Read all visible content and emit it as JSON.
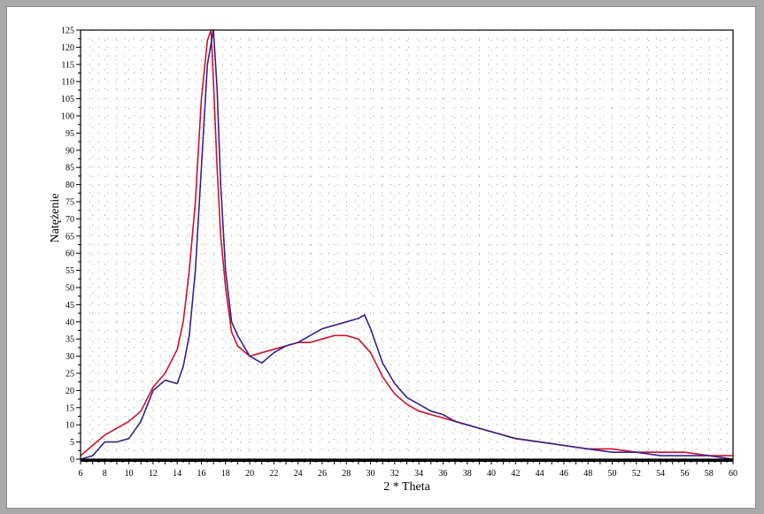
{
  "chart_data": {
    "type": "line",
    "xlabel": "2 * Theta",
    "ylabel": "Natężenie",
    "xlim": [
      6,
      60
    ],
    "ylim": [
      0,
      125
    ],
    "x_ticks": [
      6,
      8,
      10,
      12,
      14,
      16,
      18,
      20,
      22,
      24,
      26,
      28,
      30,
      32,
      34,
      36,
      38,
      40,
      42,
      44,
      46,
      48,
      50,
      52,
      54,
      56,
      58,
      60
    ],
    "y_ticks": [
      0,
      5,
      10,
      15,
      20,
      25,
      30,
      35,
      40,
      45,
      50,
      55,
      60,
      65,
      70,
      75,
      80,
      85,
      90,
      95,
      100,
      105,
      110,
      115,
      120,
      125
    ],
    "grid": "dotted",
    "series": [
      {
        "color": "#d0102c",
        "x": [
          6,
          7,
          8,
          9,
          10,
          11,
          12,
          13,
          14,
          14.5,
          15,
          15.5,
          16,
          16.5,
          16.8,
          17,
          17.3,
          17.6,
          18,
          18.5,
          19,
          20,
          21,
          22,
          23,
          24,
          25,
          26,
          27,
          28,
          29,
          30,
          31,
          32,
          33,
          34,
          35,
          36,
          37,
          38,
          39,
          40,
          42,
          44,
          46,
          48,
          50,
          52,
          54,
          56,
          58,
          60
        ],
        "values": [
          1,
          4,
          7,
          9,
          11,
          14,
          21,
          25,
          32,
          40,
          55,
          75,
          105,
          122,
          125,
          110,
          85,
          65,
          50,
          37,
          33,
          30,
          31,
          32,
          33,
          34,
          34,
          35,
          36,
          36,
          35,
          31,
          24,
          19,
          16,
          14,
          13,
          12,
          11,
          10,
          9,
          8,
          6,
          5,
          4,
          3,
          3,
          2,
          2,
          2,
          1,
          1
        ]
      },
      {
        "color": "#3a1f8f",
        "x": [
          6,
          7,
          8,
          9,
          10,
          11,
          12,
          13,
          14,
          14.5,
          15,
          15.5,
          16,
          16.5,
          17,
          17.3,
          17.6,
          18,
          18.5,
          19,
          20,
          21,
          22,
          23,
          24,
          25,
          26,
          27,
          28,
          29,
          29.5,
          30,
          31,
          32,
          33,
          34,
          35,
          36,
          37,
          38,
          39,
          40,
          42,
          44,
          46,
          48,
          50,
          52,
          54,
          56,
          58,
          60
        ],
        "values": [
          0,
          1,
          5,
          5,
          6,
          11,
          20,
          23,
          22,
          27,
          36,
          55,
          85,
          115,
          125,
          108,
          80,
          55,
          40,
          36,
          30,
          28,
          31,
          33,
          34,
          36,
          38,
          39,
          40,
          41,
          42,
          38,
          28,
          22,
          18,
          16,
          14,
          13,
          11,
          10,
          9,
          8,
          6,
          5,
          4,
          3,
          2,
          2,
          1,
          1,
          1,
          0
        ]
      }
    ]
  }
}
